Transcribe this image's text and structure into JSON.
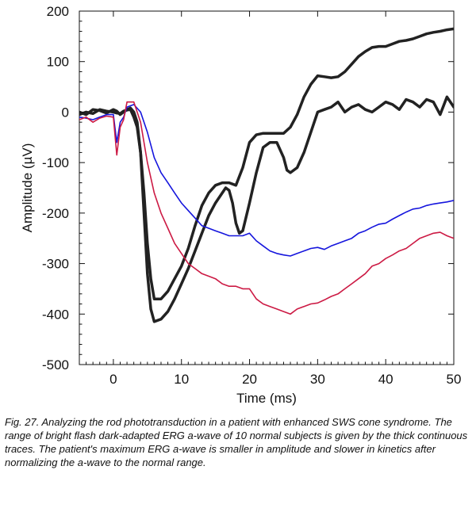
{
  "caption": "Fig. 27. Analyzing the rod phototransduction in a patient with enhanced SWS cone syndrome. The range of bright flash dark-adapted ERG a-wave of 10 normal subjects is given by the thick continuous traces. The patient's maximum ERG a-wave is smaller in amplitude and slower in kinetics after normalizing the a-wave to the normal range.",
  "chart_data": {
    "type": "line",
    "title": "",
    "xlabel": "Time (ms)",
    "ylabel": "Amplitude (µV)",
    "xlim": [
      -5,
      50
    ],
    "ylim": [
      -500,
      200
    ],
    "xticks": [
      0,
      10,
      20,
      30,
      40,
      50
    ],
    "yticks": [
      -500,
      -400,
      -300,
      -200,
      -100,
      0,
      100,
      200
    ],
    "grid": false,
    "legend": "none",
    "series": [
      {
        "color": "#222222",
        "width": 3.5,
        "x": [
          -5,
          -4,
          -3,
          -2,
          -1,
          0,
          0.5,
          1,
          1.5,
          2,
          2.5,
          3,
          3.5,
          4,
          4.5,
          5,
          5.5,
          6,
          7,
          8,
          9,
          10,
          11,
          12,
          13,
          14,
          15,
          16,
          17,
          18,
          19,
          20,
          21,
          22,
          23,
          24,
          25,
          26,
          27,
          28,
          29,
          30,
          31,
          32,
          33,
          34,
          35,
          36,
          37,
          38,
          39,
          40,
          41,
          42,
          43,
          44,
          45,
          46,
          47,
          48,
          49,
          50
        ],
        "y": [
          -5,
          0,
          -3,
          5,
          2,
          0,
          -2,
          -3,
          2,
          4,
          5,
          -10,
          -30,
          -80,
          -160,
          -260,
          -330,
          -370,
          -370,
          -355,
          -330,
          -305,
          -270,
          -225,
          -185,
          -160,
          -145,
          -140,
          -140,
          -145,
          -110,
          -60,
          -45,
          -42,
          -42,
          -42,
          -42,
          -30,
          -5,
          30,
          55,
          72,
          70,
          68,
          70,
          80,
          95,
          110,
          120,
          128,
          130,
          130,
          135,
          140,
          142,
          145,
          150,
          155,
          158,
          160,
          163,
          165
        ]
      },
      {
        "color": "#222222",
        "width": 3.5,
        "x": [
          -5,
          -4,
          -3,
          -2,
          -1,
          0,
          0.5,
          1,
          1.5,
          2,
          2.5,
          3,
          3.5,
          4,
          4.5,
          5,
          5.5,
          6,
          7,
          8,
          9,
          10,
          11,
          12,
          13,
          14,
          15,
          16,
          16.5,
          17,
          17.5,
          18,
          18.5,
          19,
          20,
          21,
          22,
          23,
          24,
          25,
          25.5,
          26,
          27,
          28,
          29,
          30,
          31,
          32,
          33,
          34,
          35,
          36,
          37,
          38,
          39,
          40,
          41,
          42,
          43,
          44,
          45,
          46,
          47,
          48,
          49,
          50
        ],
        "y": [
          0,
          -5,
          5,
          3,
          -2,
          5,
          2,
          -5,
          0,
          5,
          8,
          0,
          -20,
          -80,
          -200,
          -320,
          -390,
          -415,
          -410,
          -395,
          -370,
          -340,
          -310,
          -275,
          -240,
          -205,
          -180,
          -160,
          -150,
          -155,
          -180,
          -220,
          -240,
          -235,
          -180,
          -120,
          -70,
          -60,
          -60,
          -90,
          -115,
          -120,
          -110,
          -80,
          -40,
          0,
          5,
          10,
          20,
          0,
          10,
          15,
          5,
          0,
          10,
          20,
          15,
          5,
          25,
          20,
          10,
          25,
          20,
          -5,
          30,
          10
        ]
      },
      {
        "color": "#1515dd",
        "width": 1.6,
        "x": [
          -5,
          -4,
          -3,
          -2,
          -1,
          0,
          0.5,
          1,
          1.5,
          2,
          3,
          4,
          5,
          6,
          7,
          8,
          9,
          10,
          11,
          12,
          13,
          14,
          15,
          16,
          17,
          18,
          19,
          20,
          21,
          22,
          23,
          24,
          25,
          26,
          27,
          28,
          29,
          30,
          31,
          32,
          33,
          34,
          35,
          36,
          37,
          38,
          39,
          40,
          41,
          42,
          43,
          44,
          45,
          46,
          47,
          48,
          49,
          50
        ],
        "y": [
          -10,
          -12,
          -15,
          -10,
          -5,
          -5,
          -60,
          -20,
          -10,
          10,
          15,
          0,
          -40,
          -90,
          -120,
          -140,
          -160,
          -180,
          -195,
          -210,
          -225,
          -230,
          -235,
          -240,
          -245,
          -245,
          -245,
          -240,
          -255,
          -265,
          -275,
          -280,
          -283,
          -285,
          -280,
          -275,
          -270,
          -268,
          -272,
          -265,
          -260,
          -255,
          -250,
          -240,
          -235,
          -228,
          -222,
          -220,
          -212,
          -205,
          -198,
          -192,
          -190,
          -185,
          -182,
          -180,
          -178,
          -175
        ]
      },
      {
        "color": "#cc1a44",
        "width": 1.6,
        "x": [
          -5,
          -4,
          -3,
          -2,
          -1,
          0,
          0.5,
          1,
          1.5,
          2,
          3,
          4,
          5,
          6,
          7,
          8,
          9,
          10,
          11,
          12,
          13,
          14,
          15,
          16,
          17,
          18,
          19,
          20,
          21,
          22,
          23,
          24,
          25,
          26,
          27,
          28,
          29,
          30,
          31,
          32,
          33,
          34,
          35,
          36,
          37,
          38,
          39,
          40,
          41,
          42,
          43,
          44,
          45,
          46,
          47,
          48,
          49,
          50
        ],
        "y": [
          -15,
          -10,
          -20,
          -12,
          -8,
          -10,
          -85,
          -30,
          -15,
          20,
          20,
          -20,
          -100,
          -160,
          -200,
          -230,
          -260,
          -280,
          -300,
          -310,
          -320,
          -325,
          -330,
          -340,
          -345,
          -345,
          -350,
          -350,
          -370,
          -380,
          -385,
          -390,
          -395,
          -400,
          -390,
          -385,
          -380,
          -378,
          -372,
          -365,
          -360,
          -350,
          -340,
          -330,
          -320,
          -305,
          -300,
          -290,
          -283,
          -275,
          -270,
          -260,
          -250,
          -245,
          -240,
          -238,
          -245,
          -250
        ]
      }
    ]
  }
}
